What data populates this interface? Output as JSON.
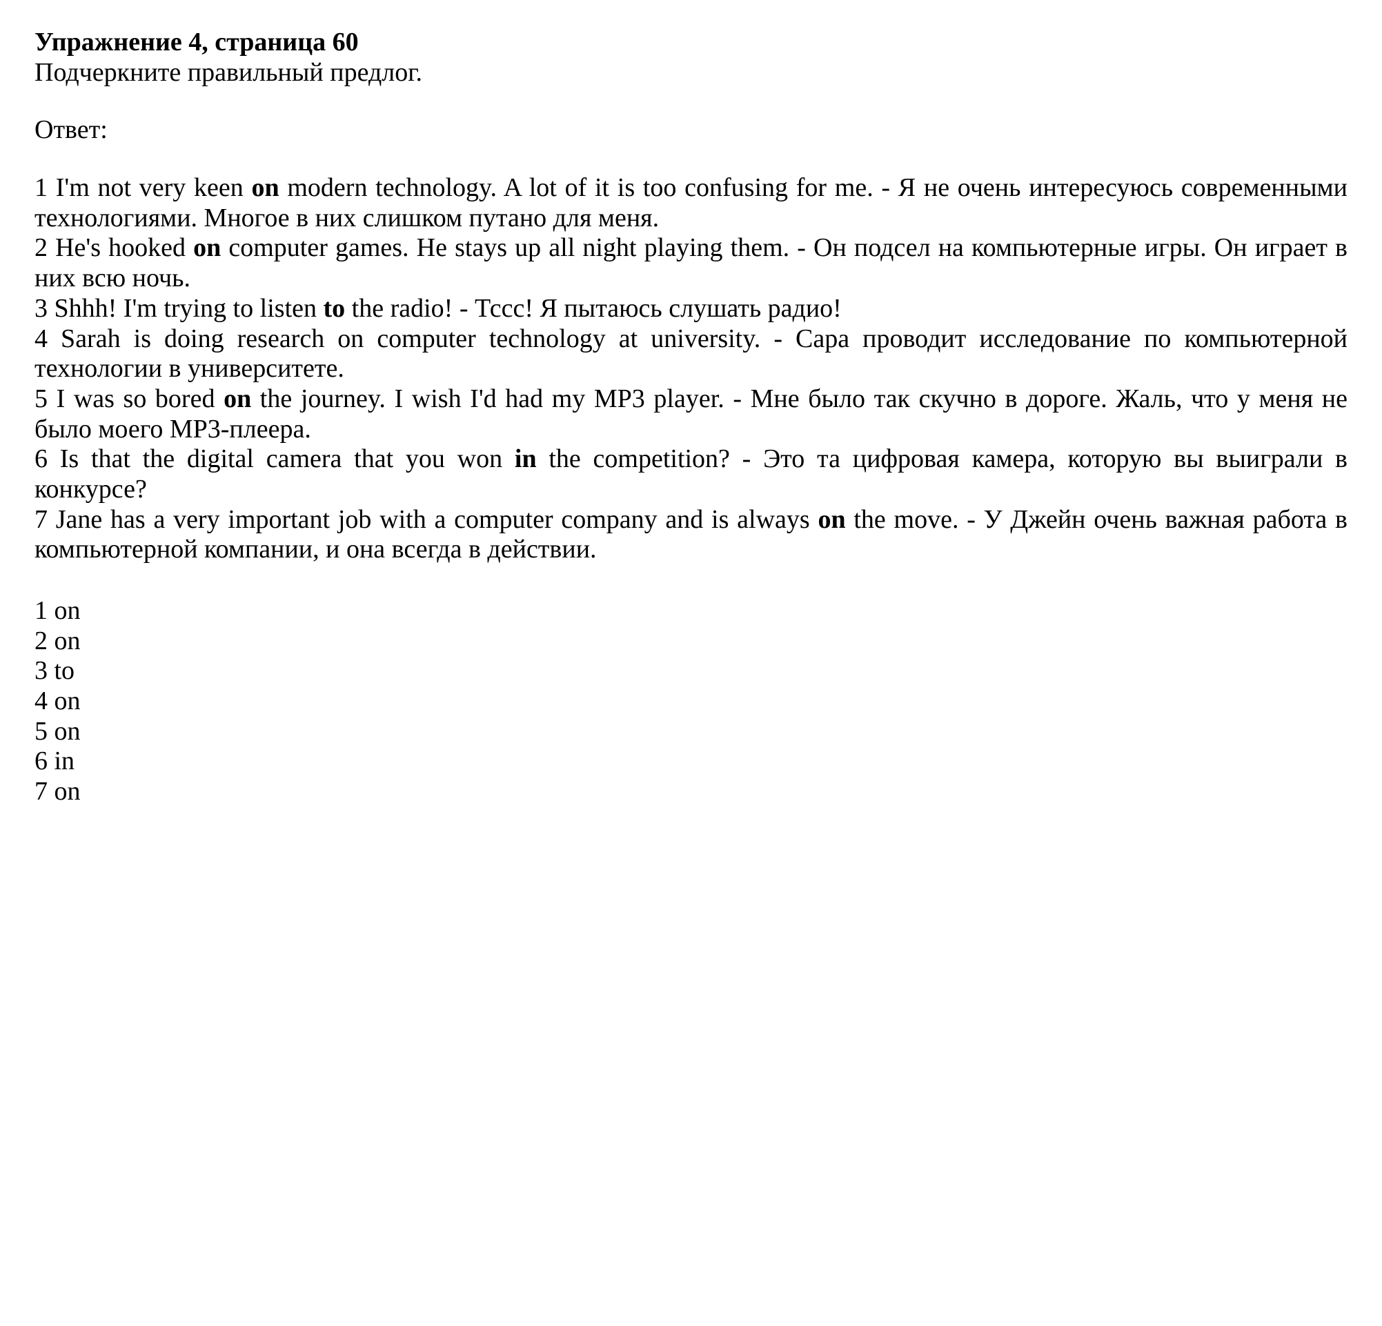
{
  "title": "Упражнение 4, страница 60",
  "instruction": "Подчеркните правильный предлог.",
  "answerLabel": "Ответ:",
  "sentences": {
    "s1": {
      "prefix": "1 I'm not very keen ",
      "bold": "on",
      "suffix": " modern technology. A lot of it is too confusing for me. - Я не очень интересуюсь современными технологиями. Многое в них слишком путано для меня."
    },
    "s2": {
      "prefix": "2 He's hooked ",
      "bold": "on",
      "suffix": " computer games. He stays up all night playing them. - Он подсел на компьютерные игры. Он играет в них всю ночь."
    },
    "s3": {
      "prefix": "3 Shhh! I'm trying to listen ",
      "bold": "to",
      "suffix": " the radio! - Тссс! Я пытаюсь слушать радио!"
    },
    "s4": {
      "text": "4 Sarah is doing research on computer technology at university. - Сара проводит исследование по компьютерной технологии в университете."
    },
    "s5": {
      "prefix": "5 I was so bored ",
      "bold": "on",
      "suffix": " the journey. I wish I'd had my MP3 player. - Мне было так скучно в дороге. Жаль, что у меня не было моего MP3-плеера."
    },
    "s6": {
      "prefix": "6 Is that the digital camera that you won ",
      "bold": "in",
      "suffix": " the competition? - Это та цифровая камера, которую вы выиграли в конкурсе?"
    },
    "s7": {
      "prefix": "7 Jane has a very important job with a computer company and is always ",
      "bold": "on",
      "suffix": " the move. - У Джейн очень важная работа в компьютерной компании, и она всегда в действии."
    }
  },
  "answers": {
    "a1": "1 on",
    "a2": "2 on",
    "a3": "3 to",
    "a4": "4 on",
    "a5": "5 on",
    "a6": "6 in",
    "a7": "7 on"
  },
  "colors": {
    "text": "#000000",
    "background": "#ffffff"
  },
  "typography": {
    "fontFamily": "Times New Roman",
    "fontSize": 38,
    "titleWeight": "bold",
    "bodyWeight": "normal"
  }
}
